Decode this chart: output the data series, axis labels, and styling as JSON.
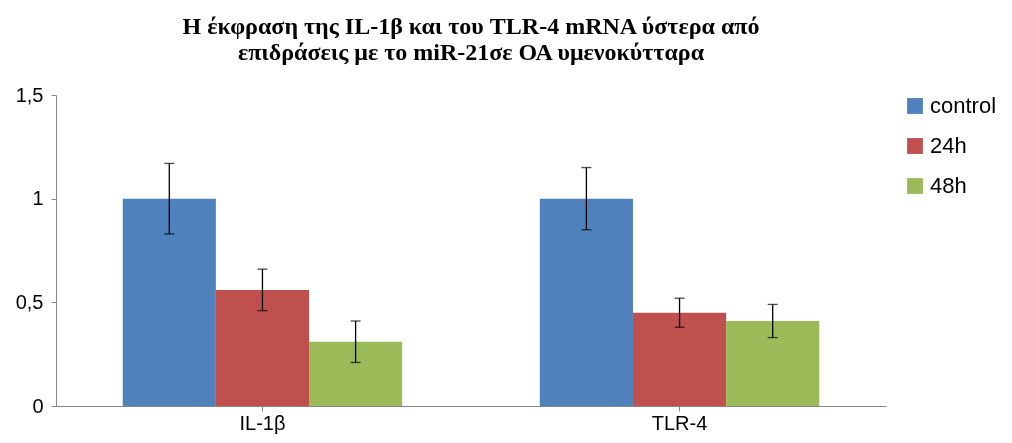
{
  "chart_data": {
    "type": "bar",
    "title": [
      "Η έκφραση της IL-1β και του TLR-4 mRNA ύστερα από",
      "επιδράσεις με το miR-21σε ΟΑ υμενοκύτταρα"
    ],
    "categories": [
      "IL-1β",
      "TLR-4"
    ],
    "series": [
      {
        "name": "control",
        "color": "#4f81bd",
        "values": [
          1.0,
          1.0
        ],
        "errors": [
          0.17,
          0.15
        ]
      },
      {
        "name": "24h",
        "color": "#c0504d",
        "values": [
          0.56,
          0.45
        ],
        "errors": [
          0.1,
          0.07
        ]
      },
      {
        "name": "48h",
        "color": "#9bbb59",
        "values": [
          0.31,
          0.41
        ],
        "errors": [
          0.1,
          0.08
        ]
      }
    ],
    "ylim": [
      0,
      1.5
    ],
    "yticks": [
      0,
      {
        "value": 0.5,
        "label": "0,5"
      },
      1,
      {
        "value": 1.5,
        "label": "1,5"
      }
    ],
    "grid": false,
    "legend": "right"
  }
}
